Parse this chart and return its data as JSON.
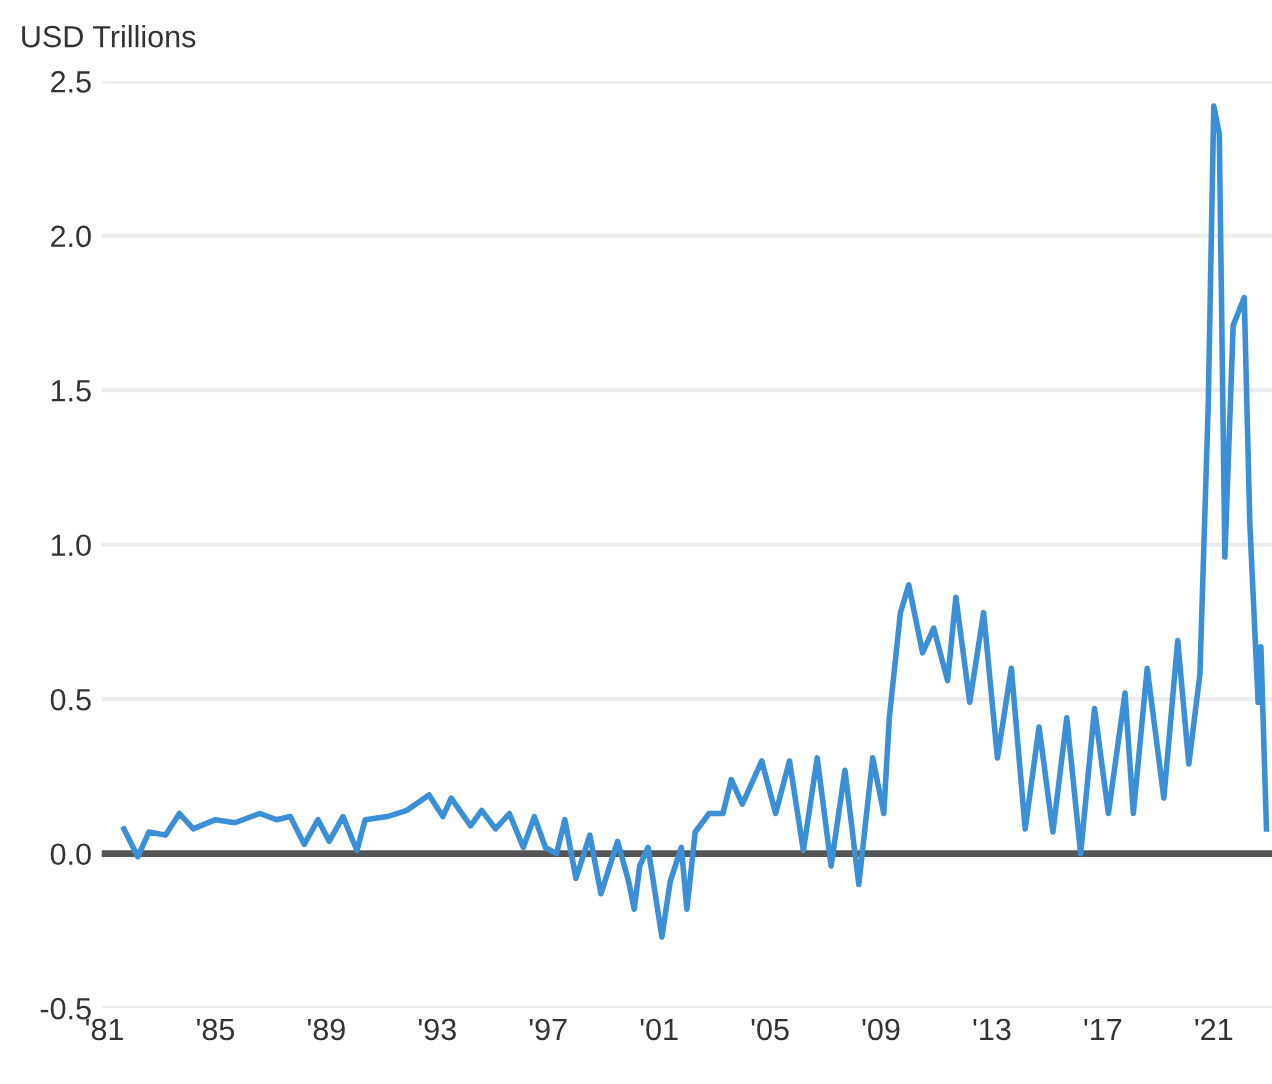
{
  "chart_data": {
    "type": "line",
    "ylabel": "USD Trillions",
    "x": [
      1981.7,
      1982.2,
      1982.6,
      1983.2,
      1983.7,
      1984.2,
      1985.0,
      1985.7,
      1986.6,
      1987.2,
      1987.7,
      1988.2,
      1988.7,
      1989.1,
      1989.6,
      1990.1,
      1990.4,
      1991.2,
      1991.9,
      1992.7,
      1993.2,
      1993.5,
      1994.2,
      1994.6,
      1995.1,
      1995.6,
      1996.1,
      1996.5,
      1996.9,
      1997.3,
      1997.6,
      1998.0,
      1998.5,
      1998.9,
      1999.5,
      1999.9,
      2000.1,
      2000.3,
      2000.6,
      2001.1,
      2001.4,
      2001.8,
      2002.0,
      2002.3,
      2002.8,
      2003.3,
      2003.6,
      2004.0,
      2004.7,
      2005.2,
      2005.7,
      2006.2,
      2006.7,
      2007.2,
      2007.7,
      2008.2,
      2008.7,
      2009.1,
      2009.3,
      2009.7,
      2010.0,
      2010.5,
      2010.9,
      2011.4,
      2011.7,
      2012.2,
      2012.7,
      2013.2,
      2013.7,
      2014.2,
      2014.7,
      2015.2,
      2015.7,
      2016.2,
      2016.7,
      2017.2,
      2017.8,
      2018.1,
      2018.6,
      2019.2,
      2019.7,
      2020.1,
      2020.5,
      2020.8,
      2021.0,
      2021.2,
      2021.4,
      2021.7,
      2022.1,
      2022.3,
      2022.6,
      2022.7,
      2022.9
    ],
    "series": [
      {
        "color": "#3a8fd6",
        "values": [
          0.08,
          -0.01,
          0.07,
          0.06,
          0.13,
          0.08,
          0.11,
          0.1,
          0.13,
          0.11,
          0.12,
          0.03,
          0.11,
          0.04,
          0.12,
          0.01,
          0.11,
          0.12,
          0.14,
          0.19,
          0.12,
          0.18,
          0.09,
          0.14,
          0.08,
          0.13,
          0.02,
          0.12,
          0.02,
          0.0,
          0.11,
          -0.08,
          0.06,
          -0.13,
          0.04,
          -0.09,
          -0.18,
          -0.04,
          0.02,
          -0.27,
          -0.09,
          0.02,
          -0.18,
          0.07,
          0.13,
          0.13,
          0.24,
          0.16,
          0.3,
          0.13,
          0.3,
          0.01,
          0.31,
          -0.04,
          0.27,
          -0.1,
          0.31,
          0.13,
          0.44,
          0.78,
          0.87,
          0.65,
          0.73,
          0.56,
          0.83,
          0.49,
          0.78,
          0.31,
          0.6,
          0.08,
          0.41,
          0.07,
          0.44,
          0.0,
          0.47,
          0.13,
          0.52,
          0.13,
          0.6,
          0.18,
          0.69,
          0.29,
          0.58,
          1.45,
          2.42,
          2.33,
          0.96,
          1.71,
          1.8,
          1.07,
          0.49,
          0.67,
          0.08
        ]
      }
    ],
    "xlim": [
      1980.9,
      2023.1
    ],
    "xticks": [
      {
        "value": 1981,
        "label": "'81"
      },
      {
        "value": 1985,
        "label": "'85"
      },
      {
        "value": 1989,
        "label": "'89"
      },
      {
        "value": 1993,
        "label": "'93"
      },
      {
        "value": 1997,
        "label": "'97"
      },
      {
        "value": 2001,
        "label": "'01"
      },
      {
        "value": 2005,
        "label": "'05"
      },
      {
        "value": 2009,
        "label": "'09"
      },
      {
        "value": 2013,
        "label": "'13"
      },
      {
        "value": 2017,
        "label": "'17"
      },
      {
        "value": 2021,
        "label": "'21"
      }
    ],
    "ylim": [
      -0.5,
      2.5
    ],
    "yticks": [
      {
        "value": -0.5,
        "label": "-0.5"
      },
      {
        "value": 0,
        "label": "0.0"
      },
      0.5,
      {
        "value": 1,
        "label": "1.0"
      },
      1.5,
      {
        "value": 2,
        "label": "2.0"
      },
      2.5
    ],
    "ref_lines": [
      {
        "axis": "y",
        "value": 0,
        "color": "#555555"
      }
    ],
    "grid": "y"
  }
}
